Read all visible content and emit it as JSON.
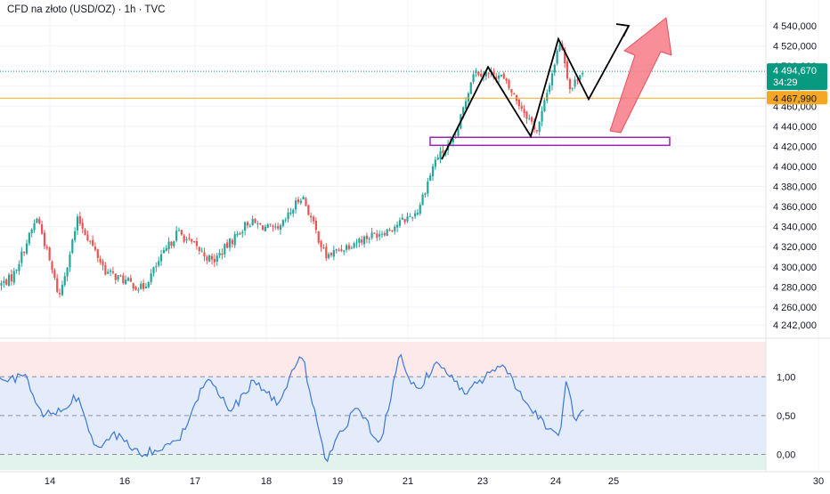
{
  "title": "CFD na złoto (USD/OZ) · 1h · TVC",
  "colors": {
    "up": "#26a69a",
    "down": "#ef5350",
    "rsi_line": "#3b78d8",
    "current_price": "#089981",
    "level_line": "#f5a623",
    "box_border": "#9c27b0",
    "arrow_fill": "#f77a85",
    "pattern_line": "#000000"
  },
  "chart_data": [
    {
      "type": "candlestick",
      "instrument": "CFD na złoto (USD/OZ)",
      "timeframe": "1h",
      "source": "TVC",
      "x_tick_labels": [
        "14",
        "16",
        "17",
        "18",
        "19",
        "21",
        "23",
        "24",
        "25",
        "30"
      ],
      "y_tick_labels": [
        "4 540,000",
        "4 520,000",
        "4 500,000",
        "4 480,000",
        "4 460,000",
        "4 440,000",
        "4 420,000",
        "4 400,000",
        "4 380,000",
        "4 360,000",
        "4 340,000",
        "4 320,000",
        "4 300,000",
        "4 280,000",
        "4 260,000",
        "4 242,000"
      ],
      "y_range": [
        4236,
        4548
      ],
      "current_price": {
        "value": "4 494,670",
        "countdown": "34:29"
      },
      "horizontal_level": {
        "value": "4 467,990",
        "price": 4467.99
      },
      "support_zone": {
        "price_low": 4421,
        "price_high": 4429
      },
      "projected_path": [
        {
          "price": 4407
        },
        {
          "price": 4499
        },
        {
          "price": 4430
        },
        {
          "price": 4527
        },
        {
          "price": 4467
        },
        {
          "price": 4540
        }
      ],
      "bullish_arrow": "upward projection from support zone",
      "ohlc_keypoints": [
        {
          "day": "13",
          "price": 4290
        },
        {
          "day": "13",
          "price": 4350
        },
        {
          "day": "14",
          "price": 4270
        },
        {
          "day": "14",
          "price": 4348
        },
        {
          "day": "15",
          "price": 4295
        },
        {
          "day": "16",
          "price": 4278
        },
        {
          "day": "16",
          "price": 4335
        },
        {
          "day": "17",
          "price": 4305
        },
        {
          "day": "17",
          "price": 4345
        },
        {
          "day": "18",
          "price": 4335
        },
        {
          "day": "18",
          "price": 4372
        },
        {
          "day": "18",
          "price": 4310
        },
        {
          "day": "19",
          "price": 4325
        },
        {
          "day": "20",
          "price": 4338
        },
        {
          "day": "21",
          "price": 4355
        },
        {
          "day": "21",
          "price": 4408
        },
        {
          "day": "22",
          "price": 4425
        },
        {
          "day": "22",
          "price": 4495
        },
        {
          "day": "23",
          "price": 4490
        },
        {
          "day": "23",
          "price": 4435
        },
        {
          "day": "24",
          "price": 4527
        },
        {
          "day": "24",
          "price": 4475
        },
        {
          "day": "24",
          "price": 4494.67
        }
      ]
    },
    {
      "type": "line",
      "panel": "oscillator",
      "y_tick_labels": [
        "1,00",
        "0,50",
        "0,00"
      ],
      "y_range": [
        -0.2,
        1.45
      ],
      "overbought_level": 1.0,
      "midline_level": 0.5,
      "oversold_level": 0.0,
      "keypoints": [
        {
          "day": "13",
          "value": 0.95
        },
        {
          "day": "13",
          "value": 1.02
        },
        {
          "day": "13",
          "value": 0.5
        },
        {
          "day": "14",
          "value": 0.55
        },
        {
          "day": "14",
          "value": 0.75
        },
        {
          "day": "15",
          "value": 0.05
        },
        {
          "day": "15",
          "value": 0.25
        },
        {
          "day": "16",
          "value": 0.0
        },
        {
          "day": "16",
          "value": 0.15
        },
        {
          "day": "17",
          "value": 1.02
        },
        {
          "day": "17",
          "value": 0.55
        },
        {
          "day": "17",
          "value": 0.95
        },
        {
          "day": "18",
          "value": 0.65
        },
        {
          "day": "18",
          "value": 1.3
        },
        {
          "day": "18",
          "value": -0.1
        },
        {
          "day": "19",
          "value": 0.6
        },
        {
          "day": "20",
          "value": 0.15
        },
        {
          "day": "20",
          "value": 1.28
        },
        {
          "day": "21",
          "value": 0.8
        },
        {
          "day": "21",
          "value": 1.2
        },
        {
          "day": "22",
          "value": 0.8
        },
        {
          "day": "23",
          "value": 1.15
        },
        {
          "day": "23",
          "value": 0.5
        },
        {
          "day": "24",
          "value": 0.2
        },
        {
          "day": "24",
          "value": 1.03
        },
        {
          "day": "24",
          "value": 0.4
        },
        {
          "day": "24",
          "value": 0.6
        }
      ]
    }
  ]
}
